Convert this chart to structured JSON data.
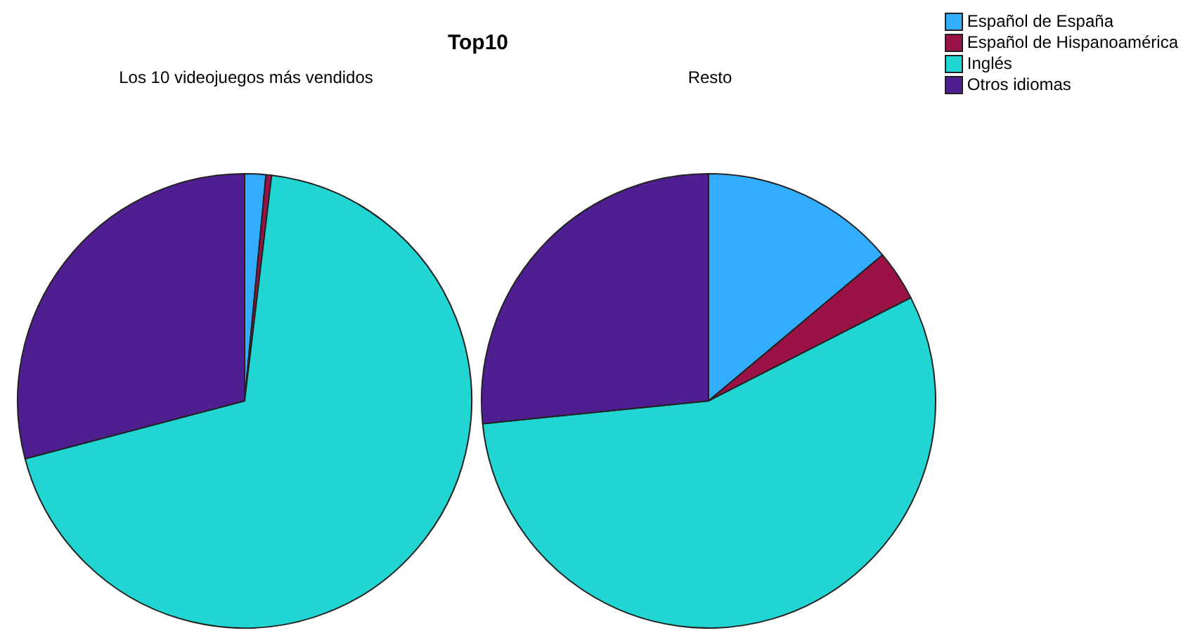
{
  "chart_data": {
    "type": "pie",
    "title": "Top10",
    "categories": [
      "Español de España",
      "Español de Hispanoamérica",
      "Inglés",
      "Otros idiomas"
    ],
    "colors": [
      "#33adff",
      "#9b1346",
      "#20d5d2",
      "#4f1f91"
    ],
    "legend": "top right",
    "series": [
      {
        "name": "Los 10 videojuegos más vendidos",
        "values": [
          1.5,
          0.4,
          69,
          29.1
        ]
      },
      {
        "name": "Resto",
        "values": [
          13.9,
          3.6,
          55.9,
          26.6
        ]
      }
    ]
  }
}
